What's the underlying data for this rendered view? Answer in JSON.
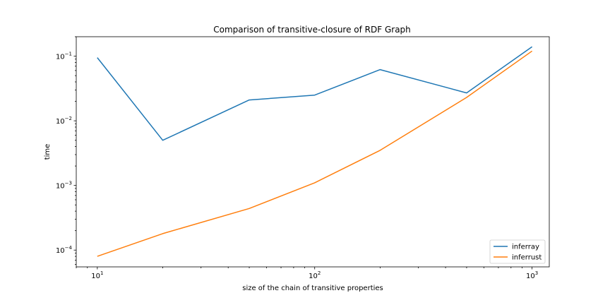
{
  "chart_data": {
    "type": "line",
    "title": "Comparison of transitive-closure of RDF Graph",
    "xlabel": "size of the chain of transitive properties",
    "ylabel": "time",
    "xscale": "log",
    "yscale": "log",
    "xlim": [
      8,
      1200
    ],
    "ylim": [
      5.5e-05,
      0.2
    ],
    "grid": false,
    "legend_position": "lower-right",
    "x_ticks": [
      {
        "value": 10,
        "base": "10",
        "exp": "1"
      },
      {
        "value": 100,
        "base": "10",
        "exp": "2"
      },
      {
        "value": 1000,
        "base": "10",
        "exp": "3"
      }
    ],
    "y_ticks": [
      {
        "value": 0.0001,
        "base": "10",
        "exp": "−4"
      },
      {
        "value": 0.001,
        "base": "10",
        "exp": "−3"
      },
      {
        "value": 0.01,
        "base": "10",
        "exp": "−2"
      },
      {
        "value": 0.1,
        "base": "10",
        "exp": "−1"
      }
    ],
    "x": [
      10,
      20,
      50,
      100,
      200,
      500,
      1000
    ],
    "series": [
      {
        "name": "inferray",
        "color": "#1f77b4",
        "values": [
          0.095,
          0.005,
          0.021,
          0.025,
          0.062,
          0.027,
          0.14
        ]
      },
      {
        "name": "inferrust",
        "color": "#ff7f0e",
        "values": [
          8e-05,
          0.00018,
          0.00044,
          0.0011,
          0.0035,
          0.023,
          0.12
        ]
      }
    ]
  }
}
